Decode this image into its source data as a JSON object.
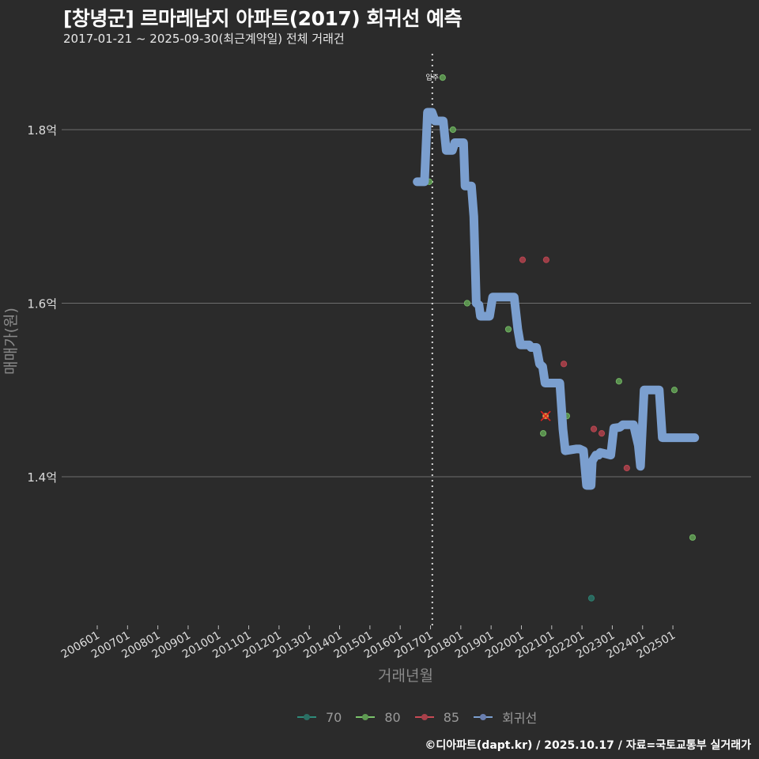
{
  "header": {
    "title": "[창녕군] 르마레남지 아파트(2017) 회귀선 예측",
    "subtitle": "2017-01-21 ~ 2025-09-30(최근계약일) 전체 거래건"
  },
  "footer": {
    "credit": "©디아파트(dapt.kr) / 2025.10.17 / 자료=국토교통부 실거래가"
  },
  "colors": {
    "background": "#2b2b2b",
    "grid": "#6e6e6e",
    "series_70": "#2e8b7a",
    "series_80": "#7ac36a",
    "series_85": "#c84a55",
    "regression": "#7b9fcf",
    "cancel_mark": "#e02020"
  },
  "chart_data": {
    "type": "scatter",
    "title": "[창녕군] 르마레남지 아파트(2017) 회귀선 예측",
    "subtitle": "2017-01-21 ~ 2025-09-30(최근계약일) 전체 거래건",
    "xlabel": "거래년월",
    "ylabel": "매매가(원)",
    "x_tick_labels": [
      "200601",
      "200701",
      "200801",
      "200901",
      "201001",
      "201101",
      "201201",
      "201301",
      "201401",
      "201501",
      "201601",
      "201701",
      "201801",
      "201901",
      "202001",
      "202101",
      "202201",
      "202301",
      "202401",
      "202501"
    ],
    "y_tick_labels": [
      "1.4억",
      "1.6억",
      "1.8억"
    ],
    "y_ticks": [
      1.4,
      1.6,
      1.8
    ],
    "ylim": [
      1.22,
      1.89
    ],
    "xlim": [
      2006.0,
      2025.8
    ],
    "grid": "horizontal",
    "legend_position": "bottom",
    "vline": {
      "x": 2017.06,
      "label": "입주"
    },
    "legend": [
      {
        "key": "70",
        "label": "70",
        "color": "#2e8b7a"
      },
      {
        "key": "80",
        "label": "80",
        "color": "#7ac36a"
      },
      {
        "key": "85",
        "label": "85",
        "color": "#c84a55"
      },
      {
        "key": "reg",
        "label": "회귀선",
        "color": "#7b9fcf"
      }
    ],
    "series": [
      {
        "name": "70",
        "points": [
          {
            "x": 2022.31,
            "y": 1.26
          }
        ]
      },
      {
        "name": "80",
        "points": [
          {
            "x": 2016.96,
            "y": 1.74
          },
          {
            "x": 2017.4,
            "y": 1.86
          },
          {
            "x": 2017.74,
            "y": 1.8
          },
          {
            "x": 2018.21,
            "y": 1.6
          },
          {
            "x": 2019.57,
            "y": 1.57
          },
          {
            "x": 2020.72,
            "y": 1.45
          },
          {
            "x": 2021.5,
            "y": 1.47
          },
          {
            "x": 2023.22,
            "y": 1.51
          },
          {
            "x": 2025.05,
            "y": 1.5
          },
          {
            "x": 2025.65,
            "y": 1.33
          }
        ]
      },
      {
        "name": "85",
        "points": [
          {
            "x": 2020.04,
            "y": 1.65
          },
          {
            "x": 2020.82,
            "y": 1.65
          },
          {
            "x": 2021.4,
            "y": 1.53
          },
          {
            "x": 2020.8,
            "y": 1.47,
            "cancelled": true
          },
          {
            "x": 2022.39,
            "y": 1.455
          },
          {
            "x": 2022.65,
            "y": 1.45
          },
          {
            "x": 2023.48,
            "y": 1.41
          }
        ]
      },
      {
        "name": "회귀선",
        "type": "line",
        "points": [
          {
            "x": 2016.56,
            "y": 1.74
          },
          {
            "x": 2016.8,
            "y": 1.74
          },
          {
            "x": 2016.9,
            "y": 1.82
          },
          {
            "x": 2017.05,
            "y": 1.82
          },
          {
            "x": 2017.15,
            "y": 1.81
          },
          {
            "x": 2017.42,
            "y": 1.81
          },
          {
            "x": 2017.52,
            "y": 1.776
          },
          {
            "x": 2017.72,
            "y": 1.776
          },
          {
            "x": 2017.8,
            "y": 1.785
          },
          {
            "x": 2018.09,
            "y": 1.785
          },
          {
            "x": 2018.14,
            "y": 1.735
          },
          {
            "x": 2018.35,
            "y": 1.735
          },
          {
            "x": 2018.43,
            "y": 1.7
          },
          {
            "x": 2018.51,
            "y": 1.6
          },
          {
            "x": 2018.6,
            "y": 1.598
          },
          {
            "x": 2018.65,
            "y": 1.585
          },
          {
            "x": 2018.95,
            "y": 1.585
          },
          {
            "x": 2019.05,
            "y": 1.607
          },
          {
            "x": 2019.35,
            "y": 1.607
          },
          {
            "x": 2019.38,
            "y": 1.607
          },
          {
            "x": 2019.76,
            "y": 1.607
          },
          {
            "x": 2019.88,
            "y": 1.57
          },
          {
            "x": 2019.97,
            "y": 1.552
          },
          {
            "x": 2020.26,
            "y": 1.552
          },
          {
            "x": 2020.32,
            "y": 1.549
          },
          {
            "x": 2020.5,
            "y": 1.549
          },
          {
            "x": 2020.6,
            "y": 1.53
          },
          {
            "x": 2020.7,
            "y": 1.527
          },
          {
            "x": 2020.78,
            "y": 1.508
          },
          {
            "x": 2021.27,
            "y": 1.508
          },
          {
            "x": 2021.37,
            "y": 1.455
          },
          {
            "x": 2021.45,
            "y": 1.43
          },
          {
            "x": 2021.8,
            "y": 1.432
          },
          {
            "x": 2021.92,
            "y": 1.432
          },
          {
            "x": 2022.05,
            "y": 1.43
          },
          {
            "x": 2022.15,
            "y": 1.39
          },
          {
            "x": 2022.3,
            "y": 1.39
          },
          {
            "x": 2022.34,
            "y": 1.418
          },
          {
            "x": 2022.46,
            "y": 1.425
          },
          {
            "x": 2022.55,
            "y": 1.425
          },
          {
            "x": 2022.6,
            "y": 1.428
          },
          {
            "x": 2022.95,
            "y": 1.425
          },
          {
            "x": 2023.05,
            "y": 1.456
          },
          {
            "x": 2023.25,
            "y": 1.457
          },
          {
            "x": 2023.35,
            "y": 1.46
          },
          {
            "x": 2023.7,
            "y": 1.46
          },
          {
            "x": 2023.8,
            "y": 1.445
          },
          {
            "x": 2023.86,
            "y": 1.436
          },
          {
            "x": 2023.93,
            "y": 1.412
          },
          {
            "x": 2024.05,
            "y": 1.5
          },
          {
            "x": 2024.55,
            "y": 1.5
          },
          {
            "x": 2024.65,
            "y": 1.445
          },
          {
            "x": 2025.06,
            "y": 1.445
          },
          {
            "x": 2025.72,
            "y": 1.445
          }
        ]
      }
    ]
  }
}
